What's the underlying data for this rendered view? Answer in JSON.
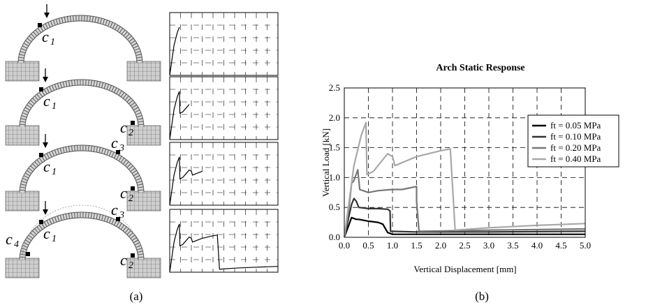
{
  "panel_a": {
    "caption": "(a)",
    "arches": [
      {
        "labels": [
          {
            "text": "c",
            "sub": "1"
          }
        ]
      },
      {
        "labels": [
          {
            "text": "c",
            "sub": "1"
          },
          {
            "text": "c",
            "sub": "2"
          }
        ]
      },
      {
        "labels": [
          {
            "text": "c",
            "sub": "1"
          },
          {
            "text": "c",
            "sub": "2"
          },
          {
            "text": "c",
            "sub": "3"
          }
        ]
      },
      {
        "labels": [
          {
            "text": "c",
            "sub": "1"
          },
          {
            "text": "c",
            "sub": "2"
          },
          {
            "text": "c",
            "sub": "3"
          },
          {
            "text": "c",
            "sub": "4"
          }
        ]
      }
    ]
  },
  "panel_b": {
    "caption": "(b)"
  },
  "chart_data": {
    "type": "line",
    "title": "Arch Static Response",
    "xlabel": "Vertical Displacement [mm]",
    "ylabel": "Vertical Load [kN]",
    "xlim": [
      0,
      5
    ],
    "ylim": [
      0,
      2.5
    ],
    "xticks": [
      "0.0",
      "0.5",
      "1.0",
      "1.5",
      "2.0",
      "2.5",
      "3.0",
      "3.5",
      "4.0",
      "4.5",
      "5.0"
    ],
    "yticks": [
      "0.0",
      "0.5",
      "1.0",
      "1.5",
      "2.0",
      "2.5"
    ],
    "grid": true,
    "legend_position": "top-right",
    "series": [
      {
        "name": "ft = 0.05 MPa",
        "color": "#000000",
        "x": [
          0,
          0.15,
          0.25,
          0.3,
          0.5,
          0.7,
          0.8,
          0.9,
          1.0,
          2.0,
          3.0,
          5.0
        ],
        "y": [
          0,
          0.33,
          0.3,
          0.3,
          0.27,
          0.25,
          0.22,
          0.08,
          0.05,
          0.05,
          0.05,
          0.05
        ]
      },
      {
        "name": "ft = 0.10 MPa",
        "color": "#333333",
        "x": [
          0,
          0.15,
          0.2,
          0.25,
          0.3,
          0.5,
          0.7,
          0.9,
          0.95,
          0.96,
          1.5,
          3.0,
          5.0
        ],
        "y": [
          0,
          0.55,
          0.65,
          0.6,
          0.5,
          0.48,
          0.48,
          0.47,
          0.44,
          0.1,
          0.09,
          0.09,
          0.1
        ]
      },
      {
        "name": "ft = 0.20 MPa",
        "color": "#777777",
        "x": [
          0,
          0.1,
          0.15,
          0.2,
          0.28,
          0.32,
          0.5,
          0.7,
          1.0,
          1.2,
          1.5,
          1.5,
          1.55,
          3.0,
          5.0
        ],
        "y": [
          0,
          0.5,
          0.9,
          0.95,
          1.13,
          0.8,
          0.75,
          0.78,
          0.8,
          0.8,
          0.85,
          0.6,
          0.1,
          0.12,
          0.14
        ]
      },
      {
        "name": "ft = 0.40 MPa",
        "color": "#a8a8a8",
        "x": [
          0,
          0.2,
          0.35,
          0.45,
          0.47,
          0.6,
          0.8,
          0.9,
          1.0,
          1.05,
          1.5,
          2.0,
          2.2,
          2.3,
          3.0,
          4.0,
          5.0
        ],
        "y": [
          0,
          1.2,
          1.7,
          1.92,
          1.05,
          1.1,
          1.3,
          1.4,
          1.35,
          1.2,
          1.35,
          1.45,
          1.48,
          0.12,
          0.16,
          0.2,
          0.23
        ]
      }
    ]
  }
}
